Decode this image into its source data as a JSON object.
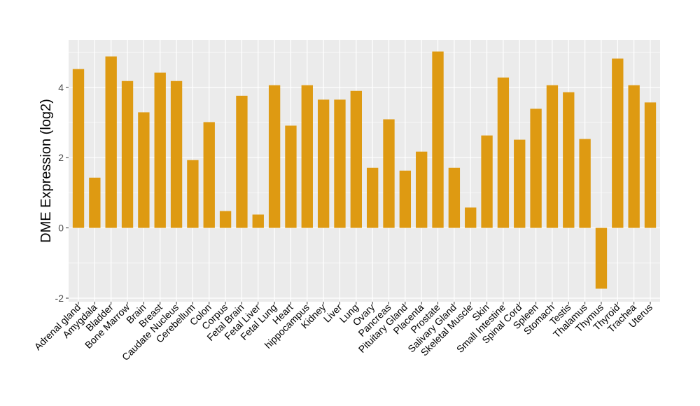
{
  "chart_data": {
    "type": "bar",
    "title": "",
    "xlabel": "",
    "ylabel": "DME Expression (log2)",
    "ylim": [
      -2.1,
      5.35
    ],
    "yticks": [
      -2,
      0,
      2,
      4
    ],
    "grid": true,
    "bar_color": "#DE9A12",
    "panel_color": "#EBEBEB",
    "categories": [
      "Adrenal gland",
      "Amygdala",
      "Bladder",
      "Bone Marrow",
      "Brain",
      "Breast",
      "Caudate Nucleus",
      "Cerebellum",
      "Colon",
      "Corpus",
      "Fetal Brain",
      "Fetal Liver",
      "Fetal Lung",
      "Heart",
      "hippocampus",
      "Kidney",
      "Liver",
      "Lung",
      "Ovary",
      "Pancreas",
      "Pituitary Gland",
      "Placenta",
      "Prostate",
      "Salivary Gland",
      "Skeletal Muscle",
      "Skin",
      "Small Intestine",
      "Spinal Cord",
      "Spleen",
      "Stomach",
      "Testis",
      "Thalamus",
      "Thymus",
      "Thyroid",
      "Trachea",
      "Uterus"
    ],
    "values": [
      4.52,
      1.43,
      4.88,
      4.18,
      3.29,
      4.42,
      4.18,
      1.93,
      3.01,
      0.48,
      3.76,
      0.38,
      4.06,
      2.91,
      4.06,
      3.65,
      3.65,
      3.9,
      1.71,
      3.09,
      1.63,
      2.17,
      5.02,
      1.71,
      0.58,
      2.63,
      4.28,
      2.51,
      3.39,
      4.06,
      3.86,
      2.53,
      -1.73,
      4.82,
      4.06,
      3.57
    ]
  }
}
